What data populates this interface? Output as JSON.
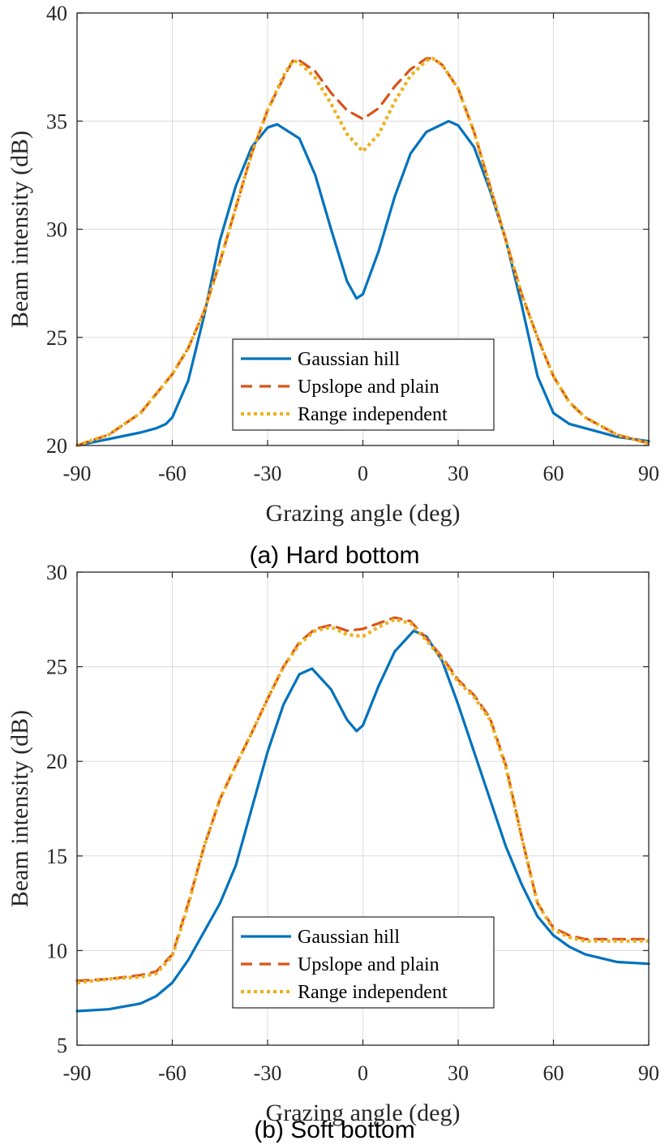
{
  "chart_data": [
    {
      "type": "line",
      "caption": "(a) Hard bottom",
      "xlabel": "Grazing angle (deg)",
      "ylabel": "Beam intensity (dB)",
      "xlim": [
        -90,
        90
      ],
      "ylim": [
        20,
        40
      ],
      "xticks": [
        -90,
        -60,
        -30,
        0,
        30,
        60,
        90
      ],
      "yticks": [
        20,
        25,
        30,
        35,
        40
      ],
      "grid": true,
      "legend": "bottom-center",
      "series": [
        {
          "name": "Gaussian hill",
          "color": "#0072bd",
          "style": "solid",
          "x": [
            -90,
            -80,
            -70,
            -65,
            -62,
            -60,
            -55,
            -50,
            -45,
            -40,
            -35,
            -30,
            -27,
            -20,
            -15,
            -10,
            -5,
            -2,
            0,
            5,
            10,
            15,
            20,
            27,
            30,
            35,
            40,
            45,
            50,
            55,
            60,
            65,
            70,
            80,
            90
          ],
          "y": [
            20.0,
            20.3,
            20.6,
            20.8,
            21.0,
            21.3,
            23.0,
            26.0,
            29.5,
            32.0,
            33.8,
            34.7,
            34.85,
            34.2,
            32.5,
            30.0,
            27.6,
            26.8,
            27.0,
            29.0,
            31.5,
            33.5,
            34.5,
            35.0,
            34.8,
            33.8,
            31.8,
            29.5,
            26.5,
            23.2,
            21.5,
            21.0,
            20.8,
            20.4,
            20.2
          ]
        },
        {
          "name": "Upslope and plain",
          "color": "#d95319",
          "style": "dashed",
          "x": [
            -90,
            -80,
            -70,
            -60,
            -55,
            -50,
            -45,
            -40,
            -35,
            -30,
            -25,
            -22,
            -20,
            -15,
            -10,
            -5,
            0,
            5,
            10,
            15,
            20,
            22,
            25,
            30,
            35,
            40,
            45,
            50,
            55,
            60,
            65,
            70,
            80,
            90
          ],
          "y": [
            20.0,
            20.5,
            21.5,
            23.3,
            24.5,
            26.2,
            28.5,
            31.0,
            33.5,
            35.5,
            37.0,
            37.8,
            37.8,
            37.3,
            36.3,
            35.5,
            35.1,
            35.6,
            36.6,
            37.4,
            37.9,
            37.9,
            37.6,
            36.5,
            34.5,
            32.0,
            29.5,
            27.0,
            25.0,
            23.2,
            22.0,
            21.3,
            20.5,
            20.1
          ]
        },
        {
          "name": "Range independent",
          "color": "#edb120",
          "style": "dotted",
          "x": [
            -90,
            -80,
            -70,
            -60,
            -55,
            -50,
            -45,
            -40,
            -35,
            -30,
            -25,
            -22,
            -20,
            -15,
            -10,
            -5,
            0,
            5,
            10,
            15,
            20,
            22,
            25,
            30,
            35,
            40,
            45,
            50,
            55,
            60,
            65,
            70,
            80,
            90
          ],
          "y": [
            20.0,
            20.5,
            21.5,
            23.3,
            24.5,
            26.2,
            28.5,
            31.0,
            33.5,
            35.5,
            37.1,
            37.8,
            37.7,
            37.0,
            35.8,
            34.4,
            33.6,
            34.4,
            35.9,
            37.1,
            37.8,
            37.9,
            37.6,
            36.5,
            34.5,
            32.0,
            29.5,
            27.0,
            25.0,
            23.2,
            22.0,
            21.3,
            20.5,
            20.1
          ]
        }
      ]
    },
    {
      "type": "line",
      "caption": "(b) Soft bottom",
      "xlabel": "Grazing angle (deg)",
      "ylabel": "Beam intensity (dB)",
      "xlim": [
        -90,
        90
      ],
      "ylim": [
        5,
        30
      ],
      "xticks": [
        -90,
        -60,
        -30,
        0,
        30,
        60,
        90
      ],
      "yticks": [
        5,
        10,
        15,
        20,
        25,
        30
      ],
      "grid": true,
      "legend": "bottom-center",
      "series": [
        {
          "name": "Gaussian hill",
          "color": "#0072bd",
          "style": "solid",
          "x": [
            -90,
            -80,
            -70,
            -65,
            -60,
            -55,
            -50,
            -45,
            -40,
            -35,
            -30,
            -25,
            -20,
            -16,
            -10,
            -5,
            -2,
            0,
            5,
            10,
            16,
            20,
            25,
            30,
            35,
            40,
            45,
            50,
            55,
            60,
            65,
            70,
            80,
            90
          ],
          "y": [
            6.8,
            6.9,
            7.2,
            7.6,
            8.3,
            9.5,
            11.0,
            12.5,
            14.5,
            17.5,
            20.5,
            23.0,
            24.6,
            24.9,
            23.8,
            22.2,
            21.6,
            21.9,
            24.0,
            25.8,
            26.9,
            26.6,
            25.3,
            23.0,
            20.5,
            18.0,
            15.5,
            13.5,
            11.8,
            10.8,
            10.2,
            9.8,
            9.4,
            9.3
          ]
        },
        {
          "name": "Upslope and plain",
          "color": "#d95319",
          "style": "dashed",
          "x": [
            -90,
            -80,
            -70,
            -65,
            -60,
            -55,
            -50,
            -45,
            -40,
            -35,
            -30,
            -25,
            -20,
            -15,
            -10,
            -5,
            0,
            5,
            10,
            15,
            20,
            25,
            30,
            35,
            40,
            45,
            50,
            55,
            60,
            65,
            70,
            80,
            90
          ],
          "y": [
            8.4,
            8.5,
            8.7,
            8.9,
            9.8,
            12.5,
            15.5,
            18.0,
            19.8,
            21.5,
            23.3,
            25.0,
            26.3,
            27.0,
            27.2,
            26.9,
            27.0,
            27.3,
            27.6,
            27.4,
            26.5,
            25.5,
            24.3,
            23.5,
            22.3,
            19.8,
            16.0,
            12.5,
            11.2,
            10.8,
            10.6,
            10.6,
            10.6
          ]
        },
        {
          "name": "Range independent",
          "color": "#edb120",
          "style": "dotted",
          "x": [
            -90,
            -80,
            -70,
            -65,
            -60,
            -55,
            -50,
            -45,
            -40,
            -35,
            -30,
            -25,
            -20,
            -15,
            -10,
            -5,
            0,
            5,
            10,
            15,
            20,
            25,
            30,
            35,
            40,
            45,
            50,
            55,
            60,
            65,
            70,
            80,
            90
          ],
          "y": [
            8.3,
            8.5,
            8.6,
            8.8,
            9.7,
            12.4,
            15.5,
            18.0,
            19.8,
            21.5,
            23.3,
            25.0,
            26.2,
            26.9,
            27.1,
            26.7,
            26.6,
            27.1,
            27.5,
            27.3,
            26.4,
            25.4,
            24.2,
            23.4,
            22.2,
            19.7,
            16.0,
            12.5,
            11.1,
            10.7,
            10.5,
            10.5,
            10.5
          ]
        }
      ]
    }
  ]
}
